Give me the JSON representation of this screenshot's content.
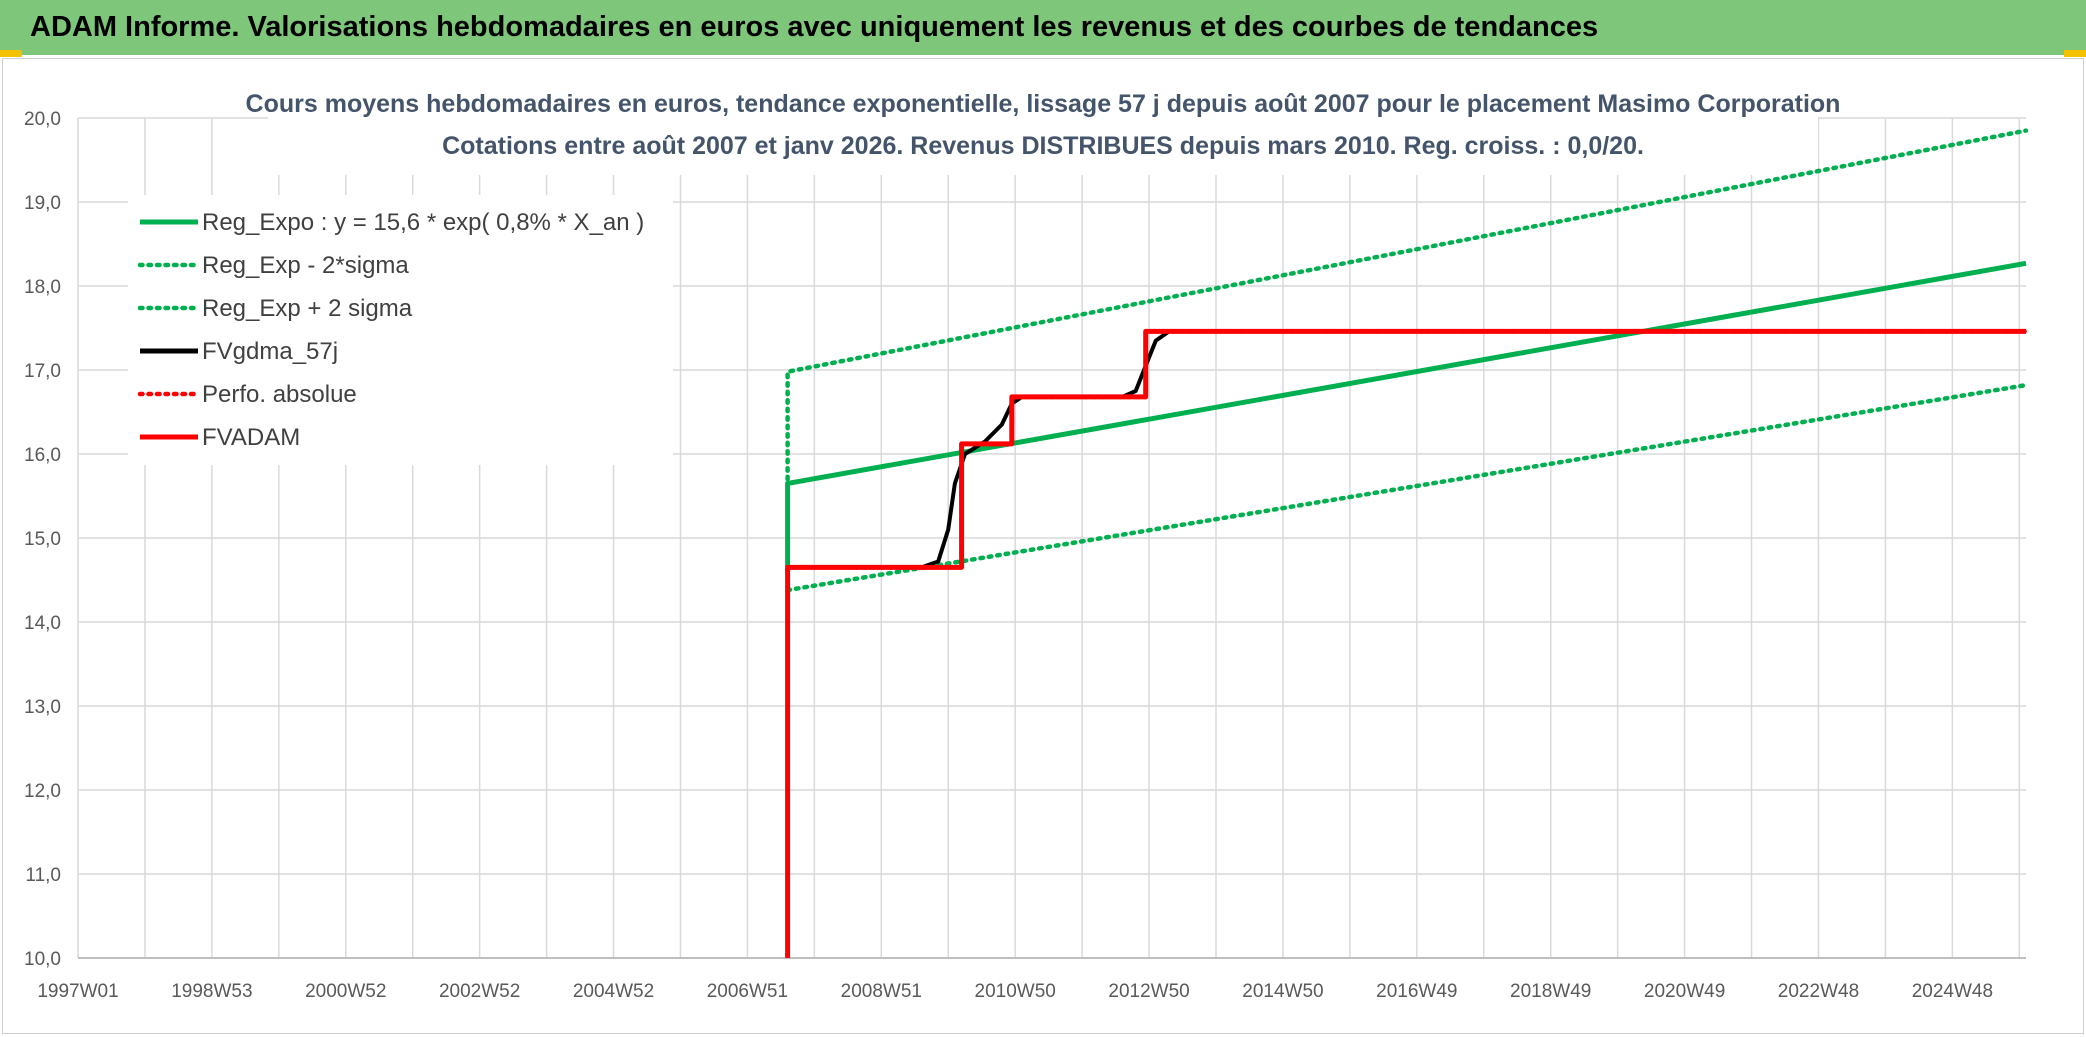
{
  "header": {
    "title": "ADAM Informe. Valorisations hebdomadaires en euros avec uniquement les revenus et des courbes de tendances"
  },
  "chart_data": {
    "type": "line",
    "title": "Cours moyens hebdomadaires en euros, tendance exponentielle, lissage 57 j depuis août 2007 pour le placement Masimo Corporation",
    "subtitle": "Cotations entre août 2007 et janv 2026. Revenus DISTRIBUES depuis mars 2010. Reg. croiss. : 0,0/20.",
    "xlabel": "",
    "ylabel": "",
    "x_range": [
      1997.0,
      2026.1
    ],
    "ylim": [
      10,
      20
    ],
    "yticks": [
      "10,0",
      "11,0",
      "12,0",
      "13,0",
      "14,0",
      "15,0",
      "16,0",
      "17,0",
      "18,0",
      "19,0",
      "20,0"
    ],
    "xticks": [
      {
        "label": "1997W01",
        "x": 1997.0
      },
      {
        "label": "1998W53",
        "x": 1999.0
      },
      {
        "label": "2000W52",
        "x": 2001.0
      },
      {
        "label": "2002W52",
        "x": 2003.0
      },
      {
        "label": "2004W52",
        "x": 2005.0
      },
      {
        "label": "2006W51",
        "x": 2007.0
      },
      {
        "label": "2008W51",
        "x": 2009.0
      },
      {
        "label": "2010W50",
        "x": 2011.0
      },
      {
        "label": "2012W50",
        "x": 2013.0
      },
      {
        "label": "2014W50",
        "x": 2015.0
      },
      {
        "label": "2016W49",
        "x": 2017.0
      },
      {
        "label": "2018W49",
        "x": 2019.0
      },
      {
        "label": "2020W49",
        "x": 2021.0
      },
      {
        "label": "2022W48",
        "x": 2023.0
      },
      {
        "label": "2024W48",
        "x": 2025.0
      }
    ],
    "grid": true,
    "legend_position": "top-left",
    "series": [
      {
        "name": "Reg_Expo : y = 15,6 * exp( 0,8% *  X_an )",
        "color": "#00b050",
        "style": "solid",
        "points": [
          [
            2007.6,
            14.6
          ],
          [
            2007.6,
            15.65
          ],
          [
            2026.1,
            18.27
          ]
        ]
      },
      {
        "name": "Reg_Exp - 2*sigma",
        "color": "#00b050",
        "style": "dotted",
        "points": [
          [
            2007.6,
            14.38
          ],
          [
            2026.1,
            16.82
          ]
        ]
      },
      {
        "name": "Reg_Exp + 2 sigma",
        "color": "#00b050",
        "style": "dotted",
        "points": [
          [
            2007.6,
            15.7
          ],
          [
            2007.6,
            16.98
          ],
          [
            2026.1,
            19.85
          ]
        ]
      },
      {
        "name": "FVgdma_57j",
        "color": "#000000",
        "style": "solid",
        "points": [
          [
            2007.6,
            14.65
          ],
          [
            2009.6,
            14.65
          ],
          [
            2009.85,
            14.72
          ],
          [
            2010.0,
            15.1
          ],
          [
            2010.1,
            15.65
          ],
          [
            2010.25,
            16.0
          ],
          [
            2010.55,
            16.15
          ],
          [
            2010.8,
            16.35
          ],
          [
            2010.95,
            16.6
          ],
          [
            2011.1,
            16.68
          ],
          [
            2012.6,
            16.68
          ],
          [
            2012.8,
            16.75
          ],
          [
            2012.95,
            17.05
          ],
          [
            2013.1,
            17.35
          ],
          [
            2013.3,
            17.46
          ],
          [
            2026.1,
            17.46
          ]
        ]
      },
      {
        "name": "Perfo. absolue",
        "color": "#ff0000",
        "style": "dotted",
        "points": [
          [
            2007.6,
            14.65
          ],
          [
            2010.2,
            14.65
          ],
          [
            2010.2,
            16.12
          ],
          [
            2010.95,
            16.12
          ],
          [
            2010.95,
            16.68
          ],
          [
            2012.95,
            16.68
          ],
          [
            2012.95,
            17.46
          ],
          [
            2026.1,
            17.46
          ]
        ]
      },
      {
        "name": "FVADAM",
        "color": "#ff0000",
        "style": "solid",
        "points": [
          [
            2007.6,
            10.0
          ],
          [
            2007.6,
            14.65
          ],
          [
            2010.2,
            14.65
          ],
          [
            2010.2,
            16.12
          ],
          [
            2010.95,
            16.12
          ],
          [
            2010.95,
            16.68
          ],
          [
            2012.95,
            16.68
          ],
          [
            2012.95,
            17.46
          ],
          [
            2026.1,
            17.46
          ]
        ]
      }
    ]
  }
}
